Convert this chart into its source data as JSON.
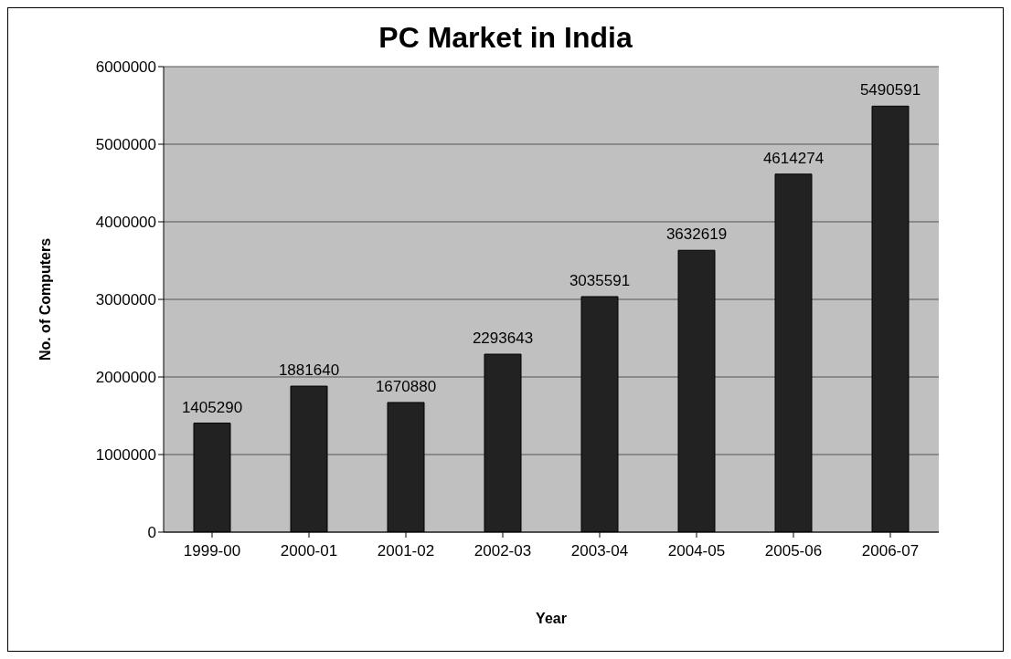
{
  "chart_data": {
    "type": "bar",
    "title": "PC Market in India",
    "xlabel": "Year",
    "ylabel": "No. of Computers",
    "categories": [
      "1999-00",
      "2000-01",
      "2001-02",
      "2002-03",
      "2003-04",
      "2004-05",
      "2005-06",
      "2006-07"
    ],
    "values": [
      1405290,
      1881640,
      1670880,
      2293643,
      3035591,
      3632619,
      4614274,
      5490591
    ],
    "color": "#222222",
    "ylim": [
      0,
      6000000
    ],
    "yticks": [
      0,
      1000000,
      2000000,
      3000000,
      4000000,
      5000000,
      6000000
    ],
    "grid": "y",
    "data_labels": true
  }
}
